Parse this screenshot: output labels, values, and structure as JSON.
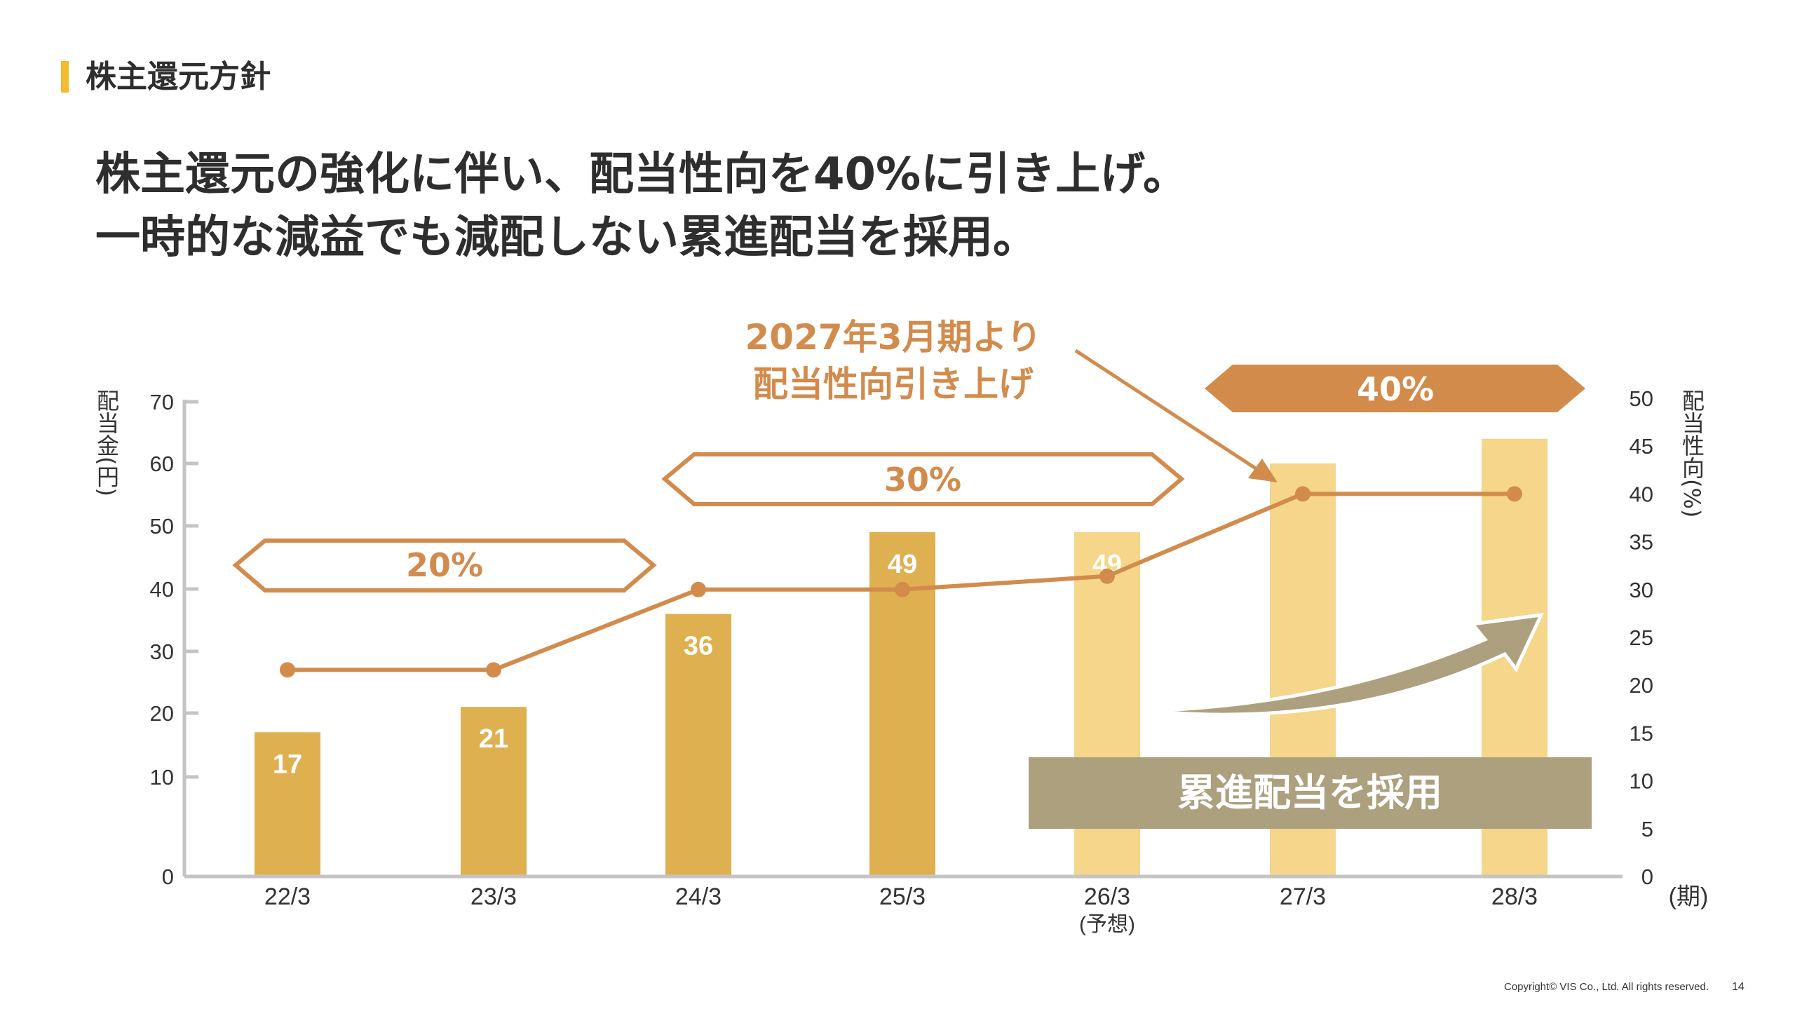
{
  "section_title": "株主還元方針",
  "headline": {
    "line1": "株主還元の強化に伴い、配当性向を40%に引き上げ。",
    "line2": "一時的な減益でも減配しない累進配当を採用。"
  },
  "colors": {
    "accent_bar": "#f2bc2c",
    "bar_actual": "#dfb04f",
    "bar_forecast": "#f5d68a",
    "payout_line": "#d38b4c",
    "progressive_box": "#aca07e"
  },
  "chart_data": {
    "type": "bar+line",
    "categories": [
      "22/3",
      "23/3",
      "24/3",
      "25/3",
      "26/3",
      "27/3",
      "28/3"
    ],
    "category_notes": {
      "26/3": "(予想)"
    },
    "x_unit_label": "(期)",
    "left_axis": {
      "label": "配当金(円)",
      "ticks": [
        0,
        10,
        20,
        30,
        40,
        50,
        60,
        70
      ],
      "range": [
        0,
        70
      ]
    },
    "right_axis": {
      "label": "配当性向(%)",
      "ticks": [
        0,
        5,
        10,
        15,
        20,
        25,
        30,
        35,
        40,
        45,
        50
      ],
      "range": [
        0,
        50
      ]
    },
    "bars": {
      "values": [
        17,
        21,
        36,
        49,
        49,
        60,
        64
      ],
      "labels": [
        "17",
        "21",
        "36",
        "49",
        "49",
        "",
        ""
      ],
      "style": [
        "actual",
        "actual",
        "actual",
        "actual",
        "forecast",
        "forecast",
        "forecast"
      ]
    },
    "payout_ratio": {
      "values": [
        21.6,
        21.6,
        30,
        30,
        31.4,
        40,
        40
      ]
    },
    "annotations": {
      "ratio_20": "20%",
      "ratio_30": "30%",
      "ratio_40": "40%",
      "callout_line1": "2027年3月期より",
      "callout_line2": "配当性向引き上げ",
      "progressive": "累進配当を採用"
    },
    "grid": false
  },
  "footer": {
    "copyright": "Copyright© VIS Co., Ltd. All rights reserved.",
    "page": "14"
  }
}
